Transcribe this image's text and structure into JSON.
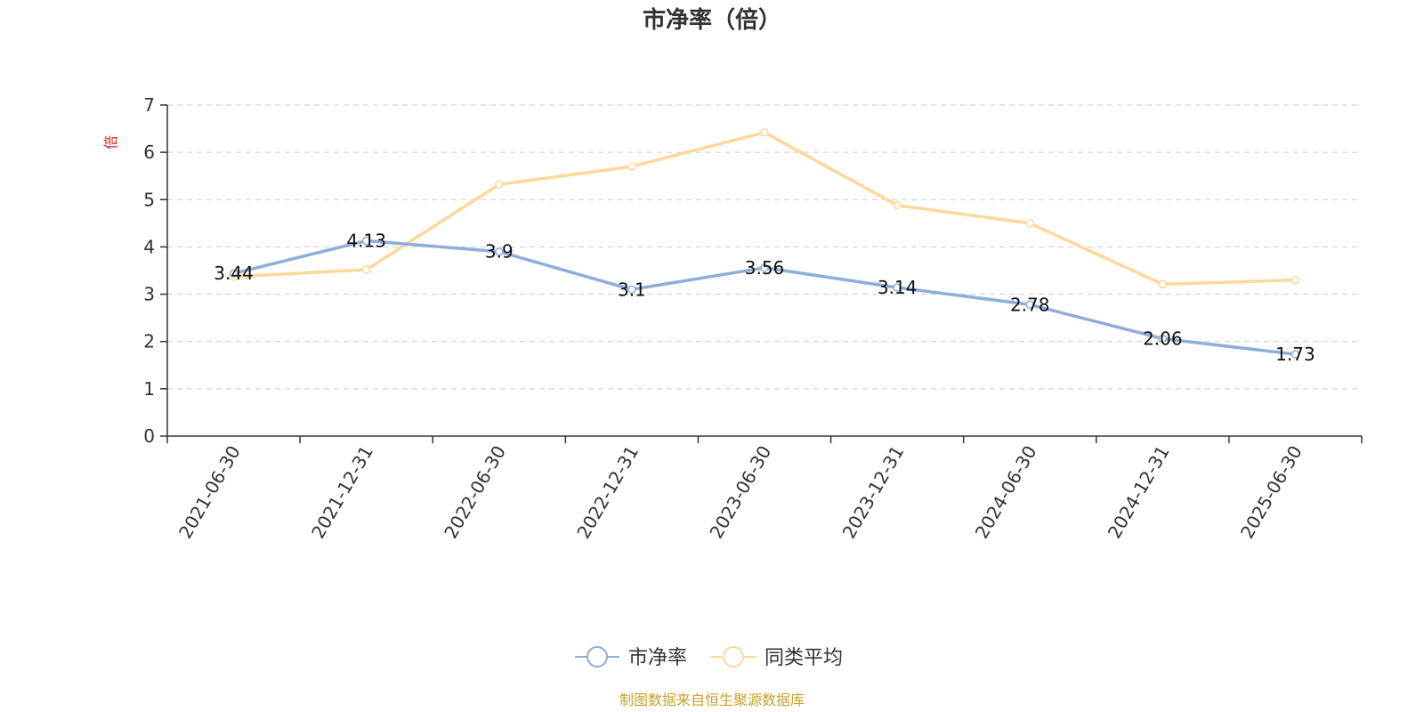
{
  "chart_data": {
    "type": "line",
    "title": "市净率（倍）",
    "ylabel": "倍",
    "xlabel": "",
    "categories": [
      "2021-06-30",
      "2021-12-31",
      "2022-06-30",
      "2022-12-31",
      "2023-06-30",
      "2023-12-31",
      "2024-06-30",
      "2024-12-31",
      "2025-06-30"
    ],
    "ylim": [
      0,
      7
    ],
    "yticks": [
      0,
      1,
      2,
      3,
      4,
      5,
      6,
      7
    ],
    "grid": true,
    "legend_position": "bottom-center",
    "series": [
      {
        "name": "市净率",
        "color": "#8eaed8",
        "values": [
          3.44,
          4.13,
          3.9,
          3.1,
          3.56,
          3.14,
          2.78,
          2.06,
          1.73
        ],
        "labels": [
          "3.44",
          "4.13",
          "3.9",
          "3.1",
          "3.56",
          "3.14",
          "2.78",
          "2.06",
          "1.73"
        ]
      },
      {
        "name": "同类平均",
        "color": "#fdd89a",
        "values": [
          3.37,
          3.52,
          5.32,
          5.7,
          6.42,
          4.88,
          4.5,
          3.21,
          3.3
        ]
      }
    ]
  },
  "unit_color": "#e02020",
  "source_text": "制图数据来自恒生聚源数据库",
  "source_color": "#c9a227"
}
